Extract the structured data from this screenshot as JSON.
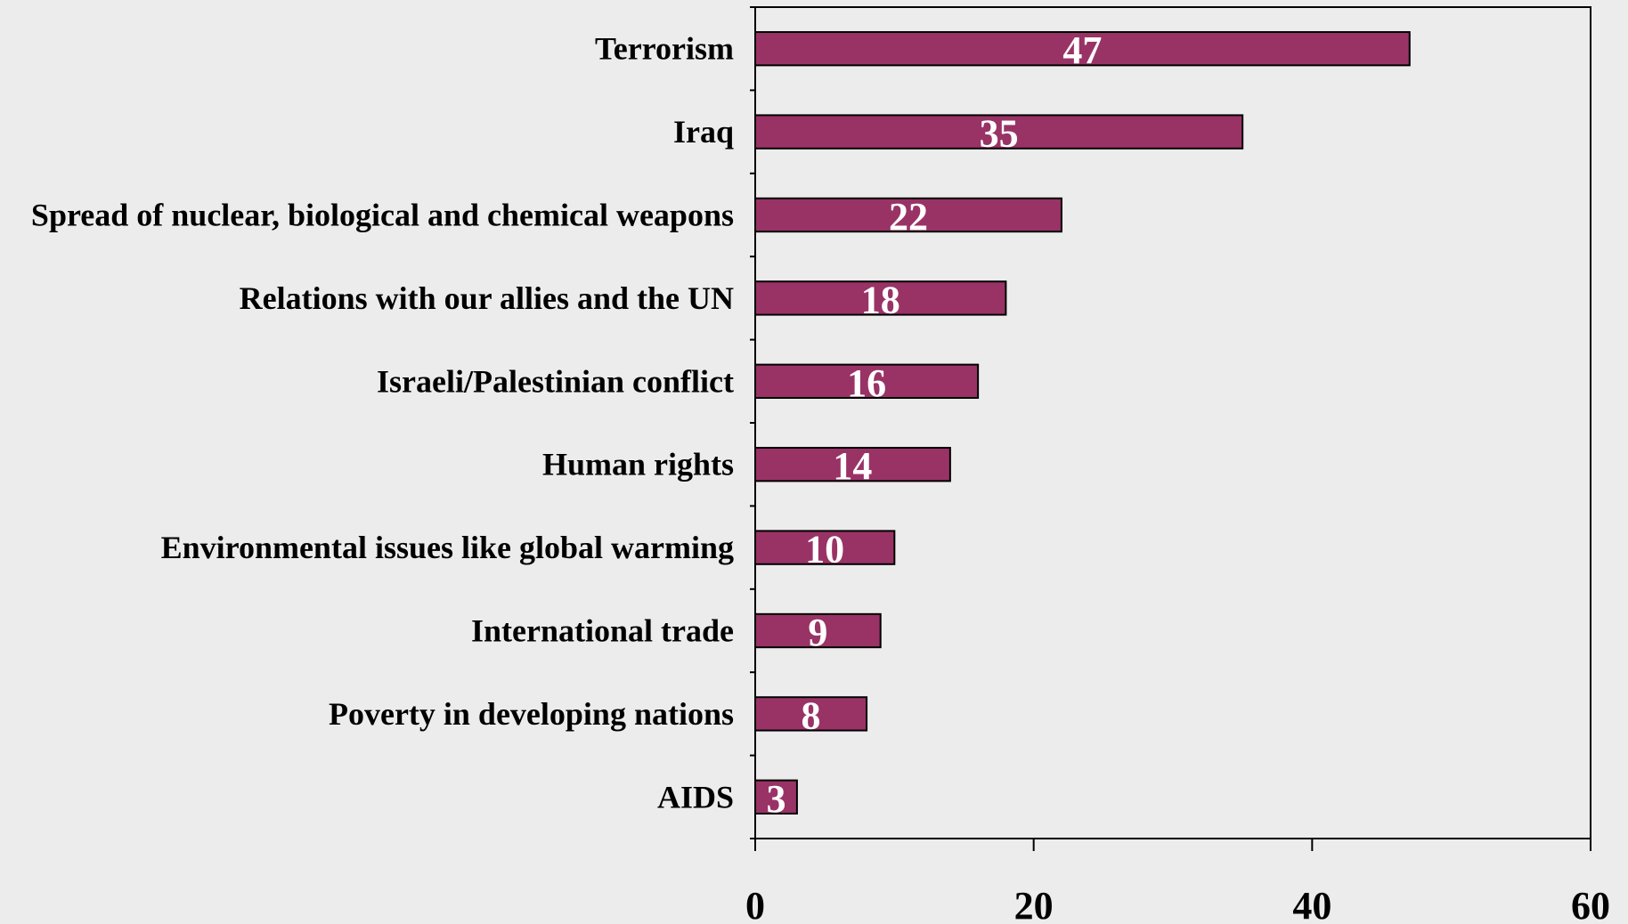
{
  "chart_data": {
    "type": "bar",
    "orientation": "horizontal",
    "categories": [
      "Terrorism",
      "Iraq",
      "Spread of nuclear, biological and chemical weapons",
      "Relations with our allies and the UN",
      "Israeli/Palestinian conflict",
      "Human rights",
      "Environmental issues like global warming",
      "International trade",
      "Poverty in developing nations",
      "AIDS"
    ],
    "values": [
      47,
      35,
      22,
      18,
      16,
      14,
      10,
      9,
      8,
      3
    ],
    "data_labels": [
      "47",
      "35",
      "22",
      "18",
      "16",
      "14",
      "10",
      "9",
      "8",
      "3"
    ],
    "xlim": [
      0,
      60
    ],
    "x_ticks": [
      0,
      20,
      40,
      60
    ],
    "x_tick_labels": [
      "0",
      "20",
      "40",
      "60"
    ],
    "title": "",
    "xlabel": "",
    "ylabel": "",
    "grid": false,
    "legend": "none",
    "bar_color": "#993366",
    "background_color": "#ececec"
  }
}
